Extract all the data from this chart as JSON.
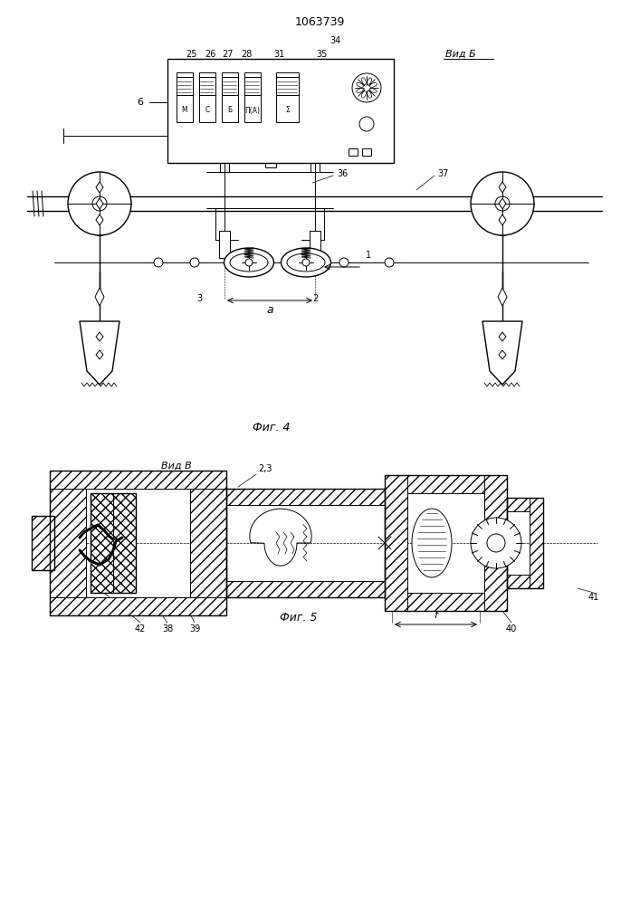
{
  "title": "1063739",
  "fig4_label": "Фиг. 4",
  "fig5_label": "Фиг. 5",
  "vid_b_label": "Вид Б",
  "vid_v_label": "Вид В",
  "bg_color": "#ffffff",
  "line_color": "#000000",
  "hatch_color": "#000000",
  "label_25": "25",
  "label_26": "26",
  "label_27": "27",
  "label_28": "28",
  "label_31": "31",
  "label_35": "35",
  "label_34": "34",
  "label_6": "6",
  "label_36": "36",
  "label_37": "37",
  "label_1": "1",
  "label_2": "2",
  "label_3": "3",
  "label_a": "a",
  "label_38": "38",
  "label_39": "39",
  "label_40": "40",
  "label_41": "41",
  "label_42": "42",
  "label_23": "2,3",
  "label_f": "f",
  "letters_M": "М",
  "letters_S": "С",
  "letters_B": "Б",
  "letters_P": "П(А)",
  "letters_E": "Σ"
}
